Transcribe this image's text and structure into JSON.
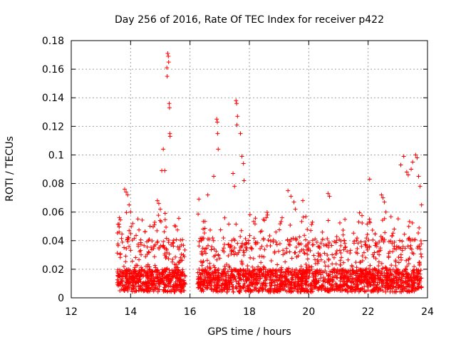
{
  "chart_data": {
    "type": "scatter",
    "title": "Day 256 of 2016, Rate Of TEC Index for receiver p422",
    "xlabel": "GPS time / hours",
    "ylabel": "ROTI / TECUs",
    "xlim": [
      12,
      24
    ],
    "ylim": [
      0,
      0.18
    ],
    "xticks": [
      "12",
      "14",
      "16",
      "18",
      "20",
      "22",
      "24"
    ],
    "yticks": [
      "0",
      "0.02",
      "0.04",
      "0.06",
      "0.08",
      "0.1",
      "0.12",
      "0.14",
      "0.16",
      "0.18"
    ],
    "marker": "+",
    "color": "#ff0000",
    "grid": true,
    "series": [
      {
        "name": "ROTI",
        "coverage_note": "dense scatter; individual samples approximated",
        "gaps": [
          [
            15.85,
            16.25
          ]
        ],
        "x": [
          15.25,
          15.27,
          15.28,
          15.22,
          15.23,
          15.3,
          15.31,
          15.32,
          15.33,
          15.1,
          15.05,
          15.15,
          16.9,
          16.92,
          16.93,
          16.95,
          17.55,
          17.57,
          17.6,
          17.58,
          17.7,
          17.75,
          17.8,
          17.82,
          13.8,
          13.85,
          13.9,
          13.95,
          14.0,
          14.9,
          14.95,
          15.0,
          16.3,
          16.6,
          16.8,
          17.45,
          17.5,
          19.3,
          19.4,
          19.5,
          19.55,
          19.8,
          20.65,
          20.7,
          22.05,
          22.45,
          22.5,
          22.55,
          22.6,
          23.1,
          23.2,
          23.3,
          23.35,
          23.45,
          23.5,
          23.6,
          23.65,
          23.7,
          23.75,
          23.8
        ],
        "y": [
          0.171,
          0.169,
          0.165,
          0.161,
          0.155,
          0.136,
          0.133,
          0.115,
          0.113,
          0.104,
          0.089,
          0.089,
          0.125,
          0.123,
          0.115,
          0.104,
          0.138,
          0.136,
          0.127,
          0.121,
          0.115,
          0.099,
          0.094,
          0.082,
          0.076,
          0.074,
          0.072,
          0.065,
          0.06,
          0.068,
          0.066,
          0.062,
          0.069,
          0.072,
          0.085,
          0.087,
          0.078,
          0.075,
          0.071,
          0.067,
          0.062,
          0.068,
          0.073,
          0.071,
          0.083,
          0.072,
          0.07,
          0.067,
          0.06,
          0.093,
          0.099,
          0.088,
          0.086,
          0.09,
          0.095,
          0.1,
          0.098,
          0.085,
          0.078,
          0.065
        ]
      }
    ]
  }
}
